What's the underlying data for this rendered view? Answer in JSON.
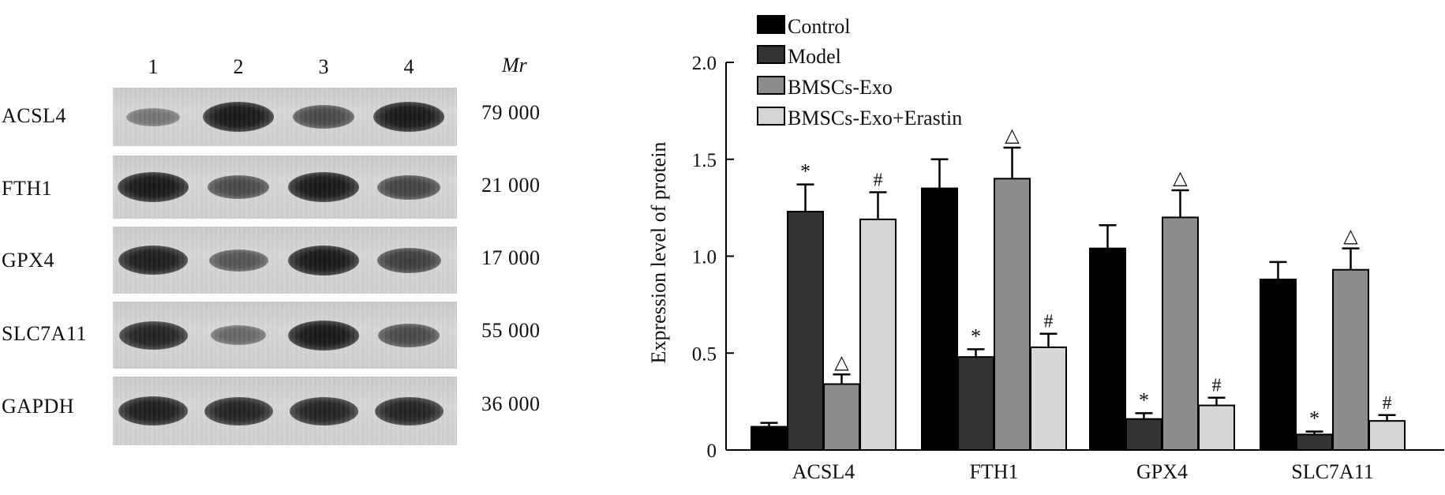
{
  "blot": {
    "lanes": [
      "1",
      "2",
      "3",
      "4"
    ],
    "mr_header": "Mr",
    "rows": [
      {
        "label": "ACSL4",
        "mr": "79 000",
        "intensity": [
          0.25,
          1.0,
          0.6,
          1.0
        ]
      },
      {
        "label": "FTH1",
        "mr": "21 000",
        "intensity": [
          1.0,
          0.6,
          1.0,
          0.65
        ]
      },
      {
        "label": "GPX4",
        "mr": "17 000",
        "intensity": [
          0.95,
          0.5,
          1.0,
          0.7
        ]
      },
      {
        "label": "SLC7A11",
        "mr": "55 000",
        "intensity": [
          0.9,
          0.35,
          1.0,
          0.6
        ]
      },
      {
        "label": "GAPDH",
        "mr": "36 000",
        "intensity": [
          0.95,
          0.9,
          0.9,
          0.9
        ]
      }
    ]
  },
  "chart_data": {
    "type": "bar",
    "ylabel": "Expression level of protein",
    "ylim": [
      0,
      2.0
    ],
    "yticks": [
      "0",
      "0.5",
      "1.0",
      "1.5",
      "2.0"
    ],
    "ytick_values": [
      0,
      0.5,
      1.0,
      1.5,
      2.0
    ],
    "categories": [
      "ACSL4",
      "FTH1",
      "GPX4",
      "SLC7A11"
    ],
    "series": [
      {
        "name": "Control",
        "color": "#000000",
        "values": [
          0.12,
          1.35,
          1.04,
          0.88
        ],
        "errors": [
          0.02,
          0.15,
          0.12,
          0.09
        ],
        "marks": [
          "",
          "",
          "",
          ""
        ]
      },
      {
        "name": "Model",
        "color": "#333333",
        "values": [
          1.23,
          0.48,
          0.16,
          0.08
        ],
        "errors": [
          0.14,
          0.04,
          0.03,
          0.015
        ],
        "marks": [
          "*",
          "*",
          "*",
          "*"
        ]
      },
      {
        "name": "BMSCs-Exo",
        "color": "#8c8c8c",
        "values": [
          0.34,
          1.4,
          1.2,
          0.93
        ],
        "errors": [
          0.05,
          0.16,
          0.14,
          0.11
        ],
        "marks": [
          "△",
          "△",
          "△",
          "△"
        ]
      },
      {
        "name": "BMSCs-Exo+Erastin",
        "color": "#d6d6d6",
        "values": [
          1.19,
          0.53,
          0.23,
          0.15
        ],
        "errors": [
          0.14,
          0.07,
          0.04,
          0.03
        ],
        "marks": [
          "#",
          "#",
          "#",
          "#"
        ]
      }
    ],
    "legend_position": "top-left"
  }
}
